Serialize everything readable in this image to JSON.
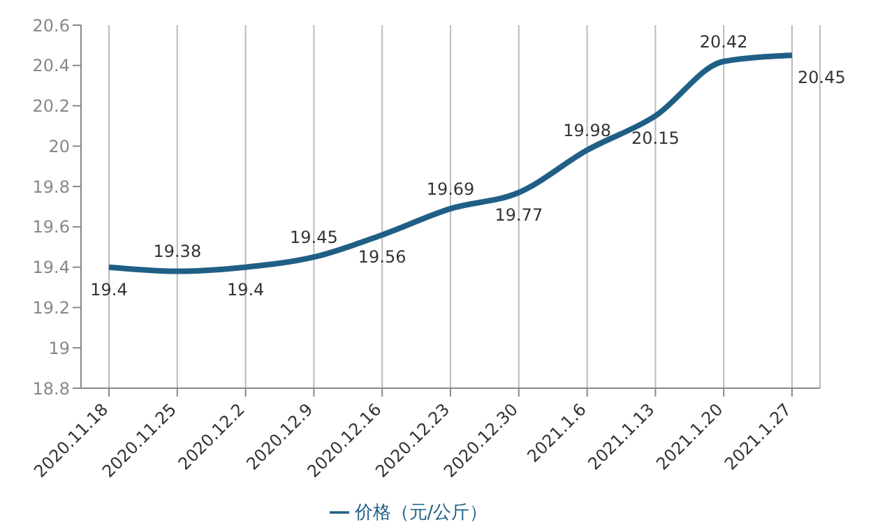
{
  "chart_data": {
    "type": "line",
    "categories": [
      "2020.11.18",
      "2020.11.25",
      "2020.12.2",
      "2020.12.9",
      "2020.12.16",
      "2020.12.23",
      "2020.12.30",
      "2021.1.6",
      "2021.1.13",
      "2021.1.20",
      "2021.1.27"
    ],
    "series": [
      {
        "name": "价格（元/公斤）",
        "color": "#1f5f86",
        "values": [
          19.4,
          19.38,
          19.4,
          19.45,
          19.56,
          19.69,
          19.77,
          19.98,
          20.15,
          20.42,
          20.45
        ]
      }
    ],
    "ylim": [
      18.8,
      20.6
    ],
    "yticks": [
      18.8,
      19,
      19.2,
      19.4,
      19.6,
      19.8,
      20,
      20.2,
      20.4,
      20.6
    ],
    "grid": "x",
    "legend": "bottom",
    "marker": "none",
    "line_style": "solid",
    "data_labels": true
  }
}
